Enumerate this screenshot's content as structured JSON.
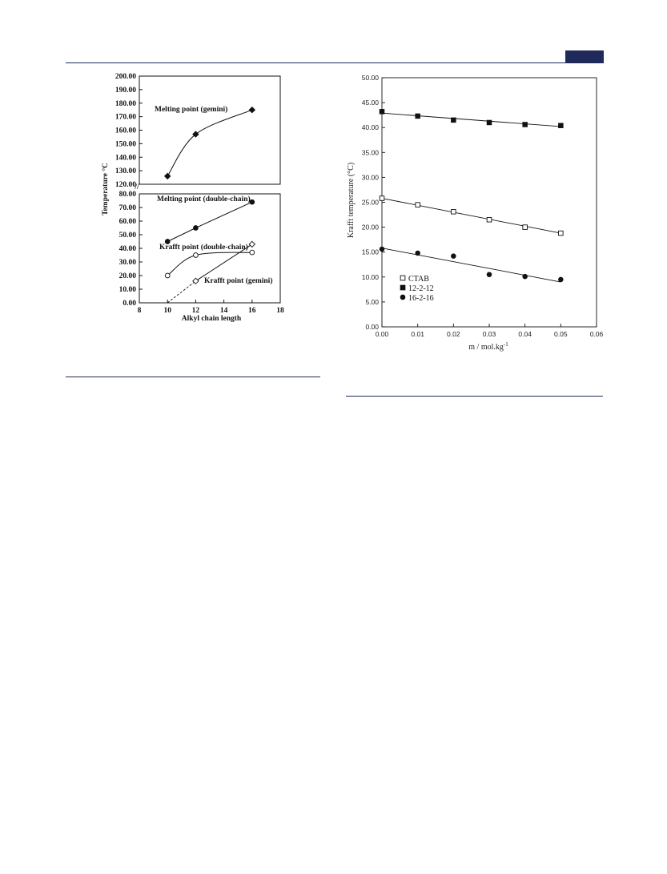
{
  "chart_data": [
    {
      "type": "line",
      "title": "",
      "xlabel": "Alkyl chain length",
      "ylabel": "Temperature °C",
      "xlim": [
        8,
        18
      ],
      "x_ticks": [
        "8",
        "10",
        "12",
        "14",
        "16",
        "18"
      ],
      "y_axis_break": true,
      "y_upper_ticks": [
        "120.00",
        "130.00",
        "140.00",
        "150.00",
        "160.00",
        "170.00",
        "180.00",
        "190.00",
        "200.00"
      ],
      "y_lower_ticks": [
        "0.00",
        "10.00",
        "20.00",
        "30.00",
        "40.00",
        "50.00",
        "60.00",
        "70.00",
        "80.00"
      ],
      "ylim_upper": [
        120,
        200
      ],
      "ylim_lower": [
        0,
        80
      ],
      "break_marker": "//",
      "series": [
        {
          "name": "Melting point (gemini)",
          "marker": "filled-diamond",
          "x": [
            10,
            12,
            16
          ],
          "y": [
            126,
            157,
            175
          ],
          "curve": "smooth"
        },
        {
          "name": "Melting point (double-chain)",
          "marker": "filled-circle",
          "x": [
            10,
            12,
            16
          ],
          "y": [
            45,
            55,
            74
          ],
          "curve": "linear"
        },
        {
          "name": "Krafft point (double-chain)",
          "marker": "open-circle",
          "x": [
            10,
            12,
            16
          ],
          "y": [
            20,
            35,
            37
          ],
          "curve": "smooth"
        },
        {
          "name": "Krafft point (gemini)",
          "marker": "open-diamond",
          "x": [
            12,
            16
          ],
          "y": [
            16,
            43
          ],
          "curve": "linear",
          "extrapolated_from": [
            10,
            0
          ]
        }
      ]
    },
    {
      "type": "scatter",
      "title": "",
      "xlabel": "m / mol.kg",
      "xlabel_sup": "-1",
      "ylabel": "Krafft temperature (°C)",
      "xlim": [
        0,
        0.06
      ],
      "ylim": [
        0,
        50
      ],
      "x_ticks": [
        "0.00",
        "0.01",
        "0.02",
        "0.03",
        "0.04",
        "0.05",
        "0.06"
      ],
      "y_ticks": [
        "0.00",
        "5.00",
        "10.00",
        "15.00",
        "20.00",
        "25.00",
        "30.00",
        "35.00",
        "40.00",
        "45.00",
        "50.00"
      ],
      "legend_position": "bottom-left",
      "series": [
        {
          "name": "CTAB",
          "marker": "open-square",
          "x": [
            0,
            0.01,
            0.02,
            0.03,
            0.04,
            0.05
          ],
          "y": [
            25.8,
            24.5,
            23.1,
            21.5,
            20.0,
            18.8
          ],
          "fit": [
            25.8,
            18.8
          ]
        },
        {
          "name": "12-2-12",
          "marker": "filled-square",
          "x": [
            0,
            0.01,
            0.02,
            0.03,
            0.04,
            0.05
          ],
          "y": [
            43.2,
            42.3,
            41.5,
            41.0,
            40.6,
            40.4
          ],
          "fit": [
            42.9,
            40.2
          ]
        },
        {
          "name": "16-2-16",
          "marker": "filled-circle",
          "x": [
            0,
            0.01,
            0.02,
            0.03,
            0.04,
            0.05
          ],
          "y": [
            15.6,
            14.8,
            14.2,
            10.5,
            10.1,
            9.5
          ],
          "fit": [
            15.8,
            9.0
          ]
        }
      ]
    }
  ]
}
